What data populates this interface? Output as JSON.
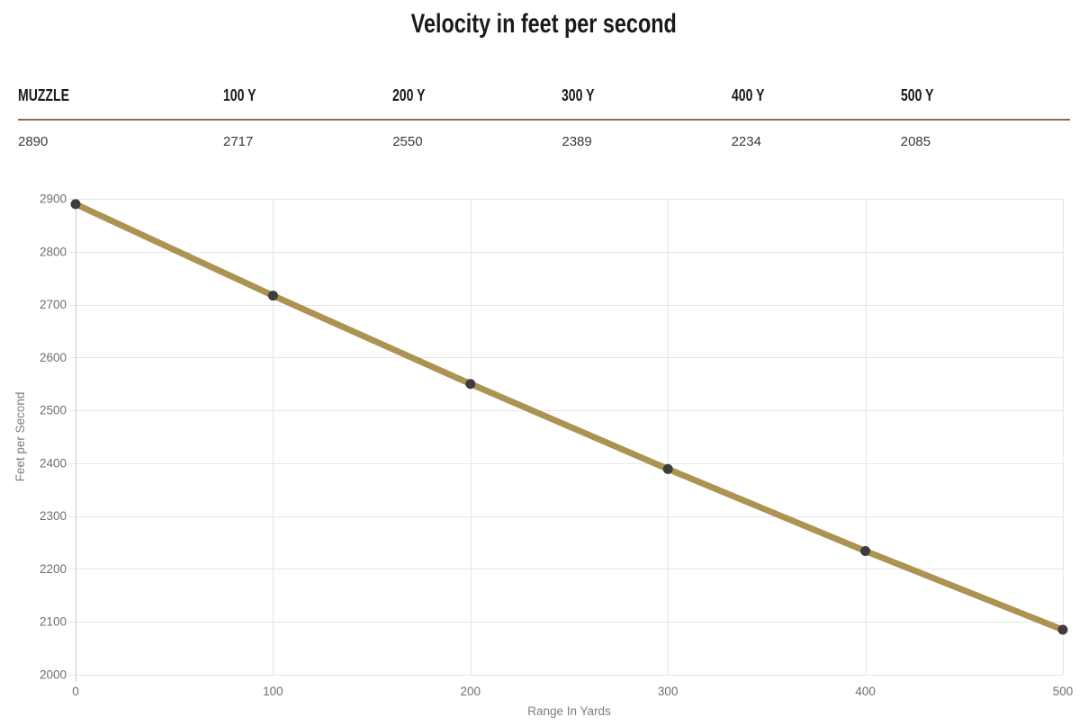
{
  "page": {
    "title": "Velocity in feet per second"
  },
  "table": {
    "headers": [
      "MUZZLE",
      "100 Y",
      "200 Y",
      "300 Y",
      "400 Y",
      "500 Y"
    ],
    "values": [
      "2890",
      "2717",
      "2550",
      "2389",
      "2234",
      "2085"
    ]
  },
  "colors": {
    "accent_gold": "#ad9351",
    "table_rule": "#877448",
    "marker": "#3d3d3d",
    "gridline": "#e6e6e6",
    "axis_line": "#cccccc",
    "tick_label": "#6f6f6f",
    "axis_title": "#7d7d7d",
    "heading_text": "#1a1a1a",
    "value_text": "#3a3a3a"
  },
  "chart_data": {
    "type": "line",
    "title": "Velocity in feet per second",
    "x": [
      0,
      100,
      200,
      300,
      400,
      500
    ],
    "series": [
      {
        "name": "Velocity",
        "values": [
          2890,
          2717,
          2550,
          2389,
          2234,
          2085
        ]
      }
    ],
    "xlabel": "Range In Yards",
    "ylabel": "Feet per Second",
    "xlim": [
      0,
      500
    ],
    "ylim": [
      2000,
      2900
    ],
    "xticks": [
      0,
      100,
      200,
      300,
      400,
      500
    ],
    "yticks": [
      2000,
      2100,
      2200,
      2300,
      2400,
      2500,
      2600,
      2700,
      2800,
      2900
    ],
    "grid": true,
    "legend": "none",
    "line_color": "#ad9351",
    "line_width": 7,
    "marker_color": "#3d3d3d",
    "marker_radius": 5.5
  }
}
